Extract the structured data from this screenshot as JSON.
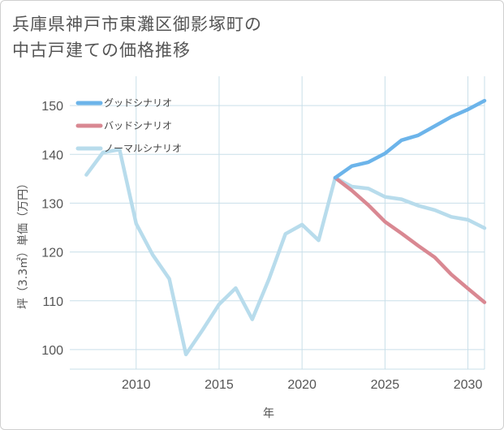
{
  "title_line1": "兵庫県神戸市東灘区御影塚町の",
  "title_line2": "中古戸建ての価格推移",
  "chart_data": {
    "type": "line",
    "xlabel": "年",
    "ylabel": "坪（3.3㎡）単価（万円）",
    "xlim": [
      2006,
      2031
    ],
    "ylim": [
      96,
      156
    ],
    "x_ticks": [
      2010,
      2015,
      2020,
      2025,
      2030
    ],
    "y_ticks": [
      100,
      110,
      120,
      130,
      140,
      150
    ],
    "grid": true,
    "legend_position": "top-left",
    "series": [
      {
        "name": "グッドシナリオ",
        "color": "#6cb4ea",
        "x": [
          2022,
          2023,
          2024,
          2025,
          2026,
          2027,
          2028,
          2029,
          2030,
          2031
        ],
        "values": [
          135.2,
          137.6,
          138.4,
          140.2,
          142.9,
          143.9,
          145.8,
          147.7,
          149.2,
          151.0
        ]
      },
      {
        "name": "バッドシナリオ",
        "color": "#d98892",
        "x": [
          2022,
          2023,
          2024,
          2025,
          2026,
          2027,
          2028,
          2029,
          2030,
          2031
        ],
        "values": [
          135.2,
          132.6,
          129.6,
          126.2,
          123.8,
          121.3,
          118.9,
          115.4,
          112.5,
          109.7
        ]
      },
      {
        "name": "ノーマルシナリオ",
        "color": "#b8dcec",
        "x": [
          2007,
          2008,
          2009,
          2010,
          2011,
          2012,
          2013,
          2014,
          2015,
          2016,
          2017,
          2018,
          2019,
          2020,
          2021,
          2022,
          2023,
          2024,
          2025,
          2026,
          2027,
          2028,
          2029,
          2030,
          2031
        ],
        "values": [
          135.8,
          140.4,
          141.0,
          125.8,
          119.4,
          114.5,
          99.0,
          104.0,
          109.3,
          112.6,
          106.2,
          114.4,
          123.7,
          125.6,
          122.4,
          135.2,
          133.4,
          133.0,
          131.3,
          130.8,
          129.5,
          128.6,
          127.2,
          126.6,
          124.9
        ]
      }
    ]
  }
}
